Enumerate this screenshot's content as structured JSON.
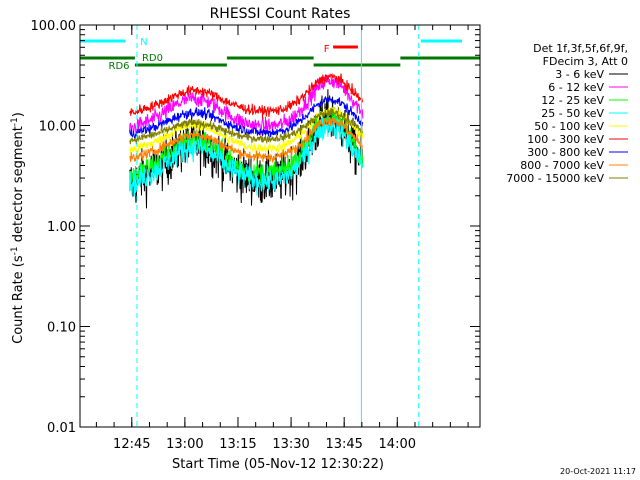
{
  "chart_data": {
    "type": "line",
    "title": "RHESSI Count Rates",
    "xlabel": "Start Time (05-Nov-12 12:30:22)",
    "ylabel_main": "Count Rate (s",
    "ylabel_sup1": "-1",
    "ylabel_mid": " detector segment",
    "ylabel_sup2": "-1",
    "ylabel_end": ")",
    "y_scale": "log",
    "ylim": [
      0.01,
      100
    ],
    "xlim_minutes": [
      0,
      113
    ],
    "x_ticks": [
      {
        "label": "12:45",
        "min": 14.63
      },
      {
        "label": "13:00",
        "min": 29.63
      },
      {
        "label": "13:15",
        "min": 44.63
      },
      {
        "label": "13:30",
        "min": 59.63
      },
      {
        "label": "13:45",
        "min": 74.63
      },
      {
        "label": "14:00",
        "min": 89.63
      }
    ],
    "y_ticks": [
      {
        "label": "100.00",
        "v": 100
      },
      {
        "label": "10.00",
        "v": 10
      },
      {
        "label": "1.00",
        "v": 1
      },
      {
        "label": "0.10",
        "v": 0.1
      },
      {
        "label": "0.01",
        "v": 0.01
      }
    ],
    "legend_header": [
      "Det 1f,3f,5f,6f,9f,",
      "FDecim 3, Att 0"
    ],
    "legend_position": "right",
    "series": [
      {
        "name": "3 - 6 keV",
        "color": "#000000",
        "start": 14,
        "end": 80,
        "base": 2.5,
        "peak": 13,
        "noise": 0.25
      },
      {
        "name": "6 - 12 keV",
        "color": "#ff00ff",
        "start": 14,
        "end": 80,
        "base": 9,
        "peak": 30,
        "noise": 0.08
      },
      {
        "name": "12 - 25 keV",
        "color": "#00ff00",
        "start": 14,
        "end": 80,
        "base": 3,
        "peak": 13,
        "noise": 0.12
      },
      {
        "name": "25 - 50 keV",
        "color": "#00ffff",
        "start": 14,
        "end": 80,
        "base": 2.5,
        "peak": 11,
        "noise": 0.12
      },
      {
        "name": "50 - 100 keV",
        "color": "#ffff00",
        "start": 14,
        "end": 80,
        "base": 5.5,
        "peak": 15,
        "noise": 0.05
      },
      {
        "name": "100 - 300 keV",
        "color": "#ff0000",
        "start": 14,
        "end": 80,
        "base": 13,
        "peak": 32,
        "noise": 0.05
      },
      {
        "name": "300 - 800 keV",
        "color": "#0000ff",
        "start": 14,
        "end": 80,
        "base": 8,
        "peak": 19,
        "noise": 0.05
      },
      {
        "name": "800 - 7000 keV",
        "color": "#ff8000",
        "start": 14,
        "end": 80,
        "base": 4.5,
        "peak": 12,
        "noise": 0.05
      },
      {
        "name": "7000 - 15000 keV",
        "color": "#808000",
        "start": 14,
        "end": 80,
        "base": 7,
        "peak": 14,
        "noise": 0.04
      }
    ],
    "annotations": [
      {
        "label": "N",
        "color": "#00ffff",
        "type": "night"
      },
      {
        "label": "RD0",
        "color": "#007700",
        "type": "rd0"
      },
      {
        "label": "RD6",
        "color": "#007700",
        "type": "rd6"
      },
      {
        "label": "F",
        "color": "#ff0000",
        "type": "flare"
      }
    ],
    "footer_date": "20-Oct-2021 11:17"
  }
}
